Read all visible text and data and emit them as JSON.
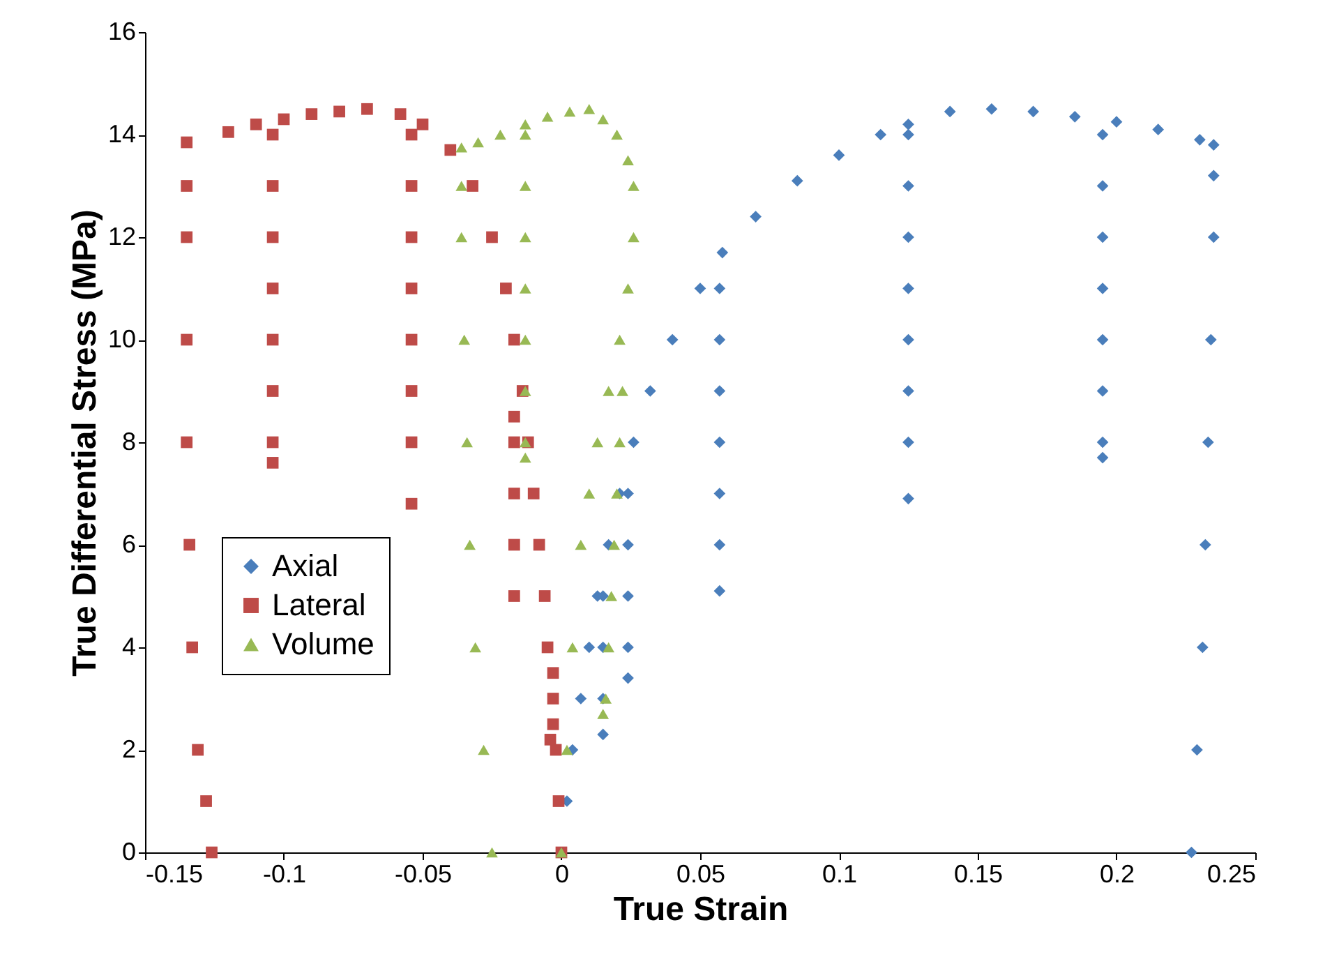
{
  "chart_data": {
    "type": "scatter",
    "xlabel": "True Strain",
    "ylabel": "True Differential Stress (MPa)",
    "xlim": [
      -0.15,
      0.25
    ],
    "xticks": [
      -0.15,
      -0.1,
      -0.05,
      0,
      0.05,
      0.1,
      0.15,
      0.2,
      0.25
    ],
    "ylim": [
      0,
      16
    ],
    "yticks": [
      0,
      2,
      4,
      6,
      8,
      10,
      12,
      14,
      16
    ],
    "grid": false,
    "legend": "left",
    "series": [
      {
        "name": "Axial",
        "color": "#4a7ebb",
        "marker": "diamond",
        "x": [
          0.002,
          0.004,
          0.007,
          0.01,
          0.013,
          0.017,
          0.021,
          0.026,
          0.032,
          0.04,
          0.05,
          0.058,
          0.07,
          0.085,
          0.1,
          0.115,
          0.125,
          0.14,
          0.155,
          0.17,
          0.185,
          0.2,
          0.215,
          0.23,
          0.235,
          0.015,
          0.015,
          0.015,
          0.015,
          0.024,
          0.024,
          0.024,
          0.024,
          0.024,
          0.057,
          0.057,
          0.057,
          0.057,
          0.057,
          0.057,
          0.057,
          0.125,
          0.125,
          0.125,
          0.125,
          0.125,
          0.125,
          0.125,
          0.125,
          0.195,
          0.195,
          0.195,
          0.195,
          0.195,
          0.195,
          0.195,
          0.195,
          0.235,
          0.235,
          0.234,
          0.233,
          0.232,
          0.231,
          0.229,
          0.227
        ],
        "values": [
          1,
          2,
          3,
          4,
          5,
          6,
          7,
          8,
          9,
          10,
          11,
          11.7,
          12.4,
          13.1,
          13.6,
          14.0,
          14.2,
          14.45,
          14.5,
          14.45,
          14.35,
          14.25,
          14.1,
          13.9,
          13.8,
          5,
          4,
          3,
          2.3,
          7,
          6,
          5,
          4,
          3.4,
          11,
          10,
          9,
          8,
          7,
          6,
          5.1,
          14,
          13,
          12,
          11,
          10,
          9,
          8,
          6.9,
          14,
          13,
          12,
          11,
          10,
          9,
          8,
          7.7,
          13.2,
          12,
          10,
          8,
          6,
          4,
          2,
          0
        ]
      },
      {
        "name": "Lateral",
        "color": "#be4b48",
        "marker": "square",
        "x": [
          0,
          -0.001,
          -0.002,
          -0.003,
          -0.005,
          -0.006,
          -0.008,
          -0.01,
          -0.012,
          -0.014,
          -0.017,
          -0.02,
          -0.025,
          -0.032,
          -0.04,
          -0.05,
          -0.058,
          -0.07,
          -0.08,
          -0.09,
          -0.1,
          -0.11,
          -0.12,
          -0.135,
          -0.003,
          -0.003,
          -0.004,
          -0.017,
          -0.017,
          -0.017,
          -0.017,
          -0.017,
          -0.054,
          -0.054,
          -0.054,
          -0.054,
          -0.054,
          -0.054,
          -0.054,
          -0.054,
          -0.104,
          -0.104,
          -0.104,
          -0.104,
          -0.104,
          -0.104,
          -0.104,
          -0.104,
          -0.135,
          -0.135,
          -0.135,
          -0.135,
          -0.134,
          -0.133,
          -0.131,
          -0.128,
          -0.126
        ],
        "values": [
          0,
          1,
          2,
          3,
          4,
          5,
          6,
          7,
          8,
          9,
          10,
          11,
          12,
          13,
          13.7,
          14.2,
          14.4,
          14.5,
          14.45,
          14.4,
          14.3,
          14.2,
          14.05,
          13.85,
          3.5,
          2.5,
          2.2,
          8.5,
          8,
          7,
          6,
          5,
          14,
          13,
          12,
          11,
          10,
          9,
          8,
          6.8,
          14,
          13,
          12,
          11,
          10,
          9,
          8,
          7.6,
          13,
          12,
          10,
          8,
          6,
          4,
          2,
          1,
          0
        ]
      },
      {
        "name": "Volume",
        "color": "#98b954",
        "marker": "triangle",
        "x": [
          0,
          0.002,
          0.004,
          0.007,
          0.01,
          0.013,
          0.017,
          0.021,
          0.024,
          0.026,
          0.026,
          0.024,
          0.02,
          0.015,
          0.01,
          0.003,
          -0.005,
          -0.013,
          -0.022,
          -0.03,
          -0.036,
          0.022,
          0.021,
          0.02,
          0.019,
          0.018,
          0.017,
          0.016,
          0.015,
          -0.013,
          -0.013,
          -0.013,
          -0.013,
          -0.013,
          -0.013,
          -0.013,
          -0.013,
          -0.036,
          -0.036,
          -0.035,
          -0.034,
          -0.033,
          -0.031,
          -0.028,
          -0.025
        ],
        "values": [
          0,
          2,
          4,
          6,
          7,
          8,
          9,
          10,
          11,
          12,
          13,
          13.5,
          14,
          14.3,
          14.5,
          14.45,
          14.35,
          14.2,
          14.0,
          13.85,
          13.75,
          9,
          8,
          7,
          6,
          5,
          4,
          3,
          2.7,
          14,
          13,
          12,
          11,
          10,
          9,
          8,
          7.7,
          13,
          12,
          10,
          8,
          6,
          4,
          2,
          0
        ]
      }
    ]
  }
}
